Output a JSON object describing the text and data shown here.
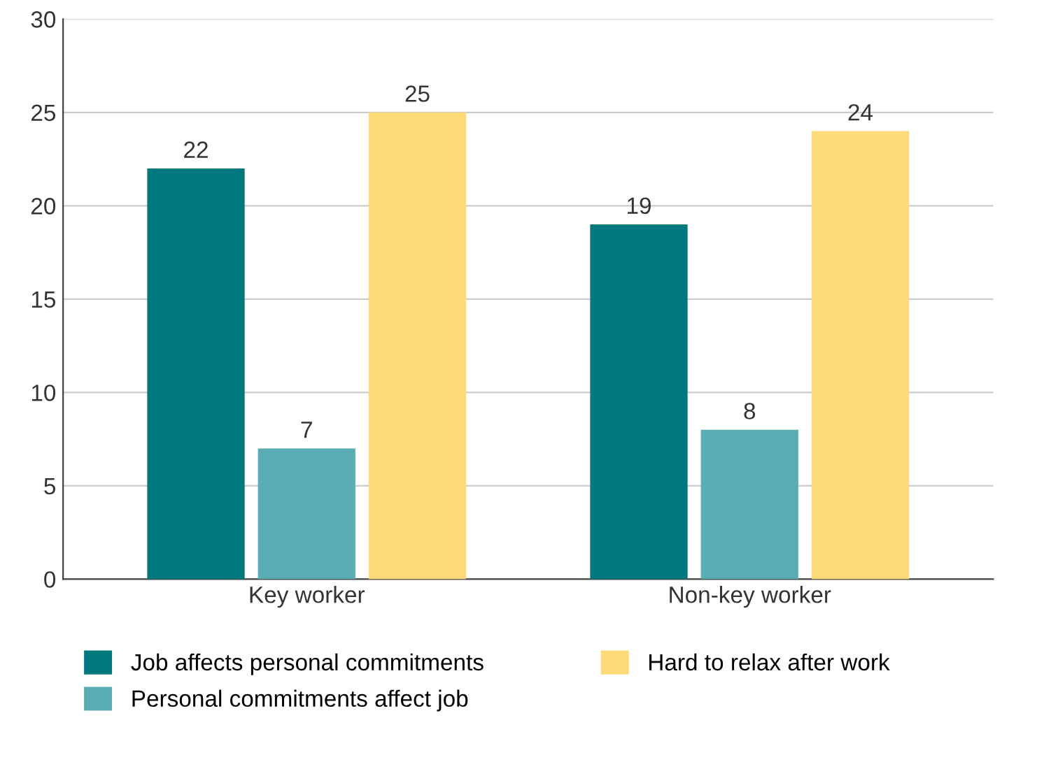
{
  "chart_data": {
    "type": "bar",
    "categories": [
      "Key worker",
      "Non-key worker"
    ],
    "series": [
      {
        "name": "Job affects personal commitments",
        "color": "#00797e",
        "values": [
          22,
          19
        ]
      },
      {
        "name": "Personal commitments affect job",
        "color": "#5aadb3",
        "values": [
          7,
          8
        ]
      },
      {
        "name": "Hard to relax after work",
        "color": "#fdd978",
        "values": [
          25,
          24
        ]
      }
    ],
    "ylim": [
      0,
      30
    ],
    "yticks": [
      0,
      5,
      10,
      15,
      20,
      25,
      30
    ],
    "grid": "y",
    "legend": "bottom",
    "data_labels": true
  }
}
